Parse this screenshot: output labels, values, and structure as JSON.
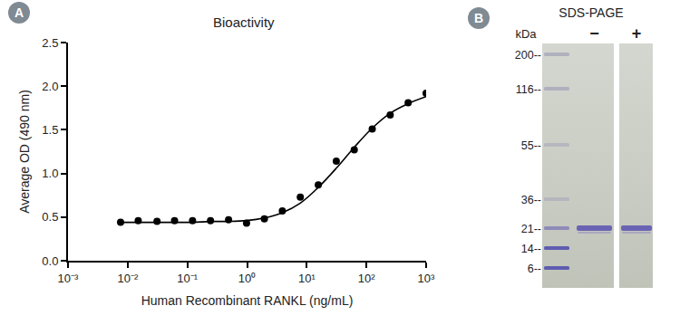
{
  "panel_letters": [
    "A",
    "B"
  ],
  "chart_data": {
    "type": "scatter",
    "title": "Bioactivity",
    "x_label": "Human Recombinant RANKL (ng/mL)",
    "y_label": "Average OD (490 nm)",
    "log": "x",
    "grid": false,
    "xlim": [
      0.001,
      1000
    ],
    "xticks": [
      {
        "value": 0.001,
        "label": "10⁻³"
      },
      {
        "value": 0.01,
        "label": "10⁻²"
      },
      {
        "value": 0.1,
        "label": "10⁻¹"
      },
      {
        "value": 1,
        "label": "10⁰"
      },
      {
        "value": 10,
        "label": "10¹"
      },
      {
        "value": 100,
        "label": "10²"
      },
      {
        "value": 1000,
        "label": "10³"
      }
    ],
    "ylim": [
      0,
      2.5
    ],
    "yticks": [
      {
        "value": 0,
        "label": "0.0"
      },
      0.5,
      {
        "value": 1,
        "label": "1.0"
      },
      1.5,
      {
        "value": 2,
        "label": "2.0"
      },
      2.5
    ],
    "series": [
      {
        "type": "scatter",
        "marker": "circle",
        "color": "#000000",
        "x": [
          0.0076,
          0.015,
          0.031,
          0.061,
          0.122,
          0.244,
          0.49,
          0.98,
          1.95,
          3.9,
          7.8,
          15.6,
          31.25,
          62.5,
          125,
          250,
          500,
          1000
        ],
        "values": [
          0.44,
          0.46,
          0.45,
          0.46,
          0.46,
          0.46,
          0.47,
          0.43,
          0.48,
          0.57,
          0.73,
          0.87,
          1.14,
          1.27,
          1.51,
          1.67,
          1.81,
          1.92
        ]
      },
      {
        "type": "line",
        "line_style": "solid",
        "color": "#000000",
        "x": [
          0.0076,
          0.015,
          0.031,
          0.061,
          0.122,
          0.244,
          0.49,
          0.98,
          1.95,
          3.9,
          7.8,
          15.6,
          31.25,
          62.5,
          125,
          250,
          500,
          1000
        ],
        "values": [
          0.44,
          0.44,
          0.44,
          0.44,
          0.44,
          0.45,
          0.45,
          0.46,
          0.49,
          0.55,
          0.66,
          0.84,
          1.06,
          1.3,
          1.52,
          1.69,
          1.8,
          1.88
        ]
      }
    ]
  },
  "gel": {
    "title": "SDS-PAGE",
    "unit": "kDa",
    "markers": [
      {
        "value": 200,
        "label": "200--"
      },
      {
        "value": 116,
        "label": "116--"
      },
      {
        "value": 55,
        "label": "55--"
      },
      {
        "value": 36,
        "label": "36--"
      },
      {
        "value": 21,
        "label": "21--"
      },
      {
        "value": 14,
        "label": "14--"
      },
      {
        "value": 6,
        "label": "6--"
      }
    ],
    "lanes": [
      {
        "label": "−",
        "bands_kda": [
          21
        ]
      },
      {
        "label": "+",
        "bands_kda": [
          21
        ]
      }
    ]
  }
}
